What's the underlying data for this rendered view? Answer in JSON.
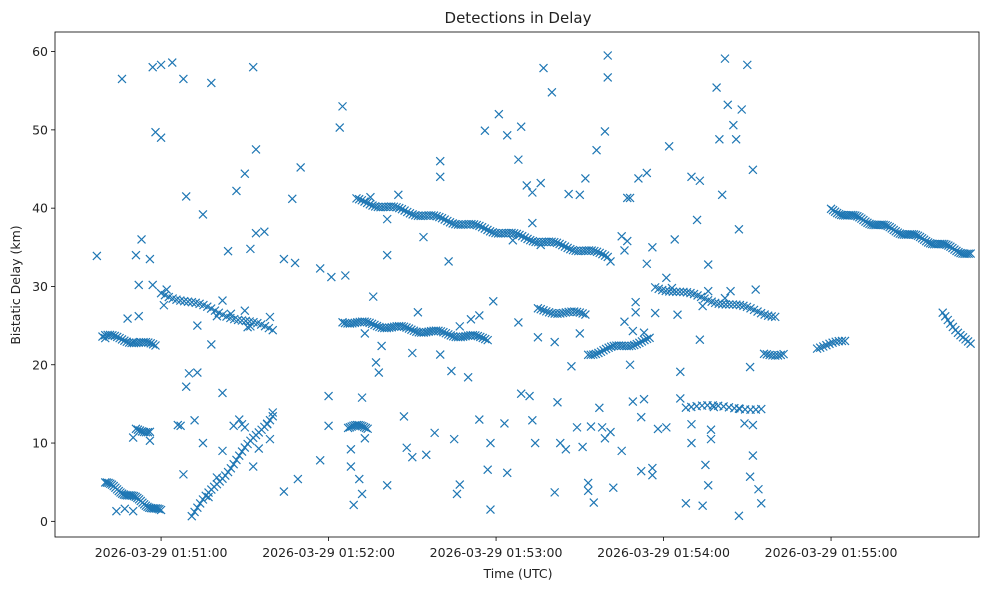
{
  "chart_data": {
    "type": "scatter",
    "title": "Detections in Delay",
    "xlabel": "Time (UTC)",
    "ylabel": "Bistatic Delay (km)",
    "marker": "x",
    "color": "#1f77b4",
    "x_unit": "seconds after 2026-03-29 01:50:00",
    "xlim": [
      22,
      353
    ],
    "ylim": [
      -2,
      62.5
    ],
    "x_ticks": [
      {
        "value": 60,
        "label": "2026-03-29 01:51:00"
      },
      {
        "value": 120,
        "label": "2026-03-29 01:52:00"
      },
      {
        "value": 180,
        "label": "2026-03-29 01:53:00"
      },
      {
        "value": 240,
        "label": "2026-03-29 01:54:00"
      },
      {
        "value": 300,
        "label": "2026-03-29 01:55:00"
      }
    ],
    "y_ticks": [
      {
        "value": 0,
        "label": "0"
      },
      {
        "value": 10,
        "label": "10"
      },
      {
        "value": 20,
        "label": "20"
      },
      {
        "value": 30,
        "label": "30"
      },
      {
        "value": 40,
        "label": "40"
      },
      {
        "value": 50,
        "label": "50"
      },
      {
        "value": 60,
        "label": "60"
      }
    ],
    "bands": [
      {
        "name": "track-low-1",
        "x0": 40,
        "y0": 4.9,
        "x1": 60,
        "y1": 1.2,
        "count": 34
      },
      {
        "name": "track-low-2",
        "x0": 71,
        "y0": 0.8,
        "x1": 100,
        "y1": 13.6,
        "count": 30
      },
      {
        "name": "track-mid-1",
        "x0": 40,
        "y0": 23.7,
        "x1": 58,
        "y1": 22.4,
        "count": 22
      },
      {
        "name": "track-mid-2",
        "x0": 60,
        "y0": 29.2,
        "x1": 100,
        "y1": 24.4,
        "count": 30
      },
      {
        "name": "track-mid-3",
        "x0": 125,
        "y0": 25.6,
        "x1": 177,
        "y1": 23.3,
        "count": 60
      },
      {
        "name": "track-mid-4",
        "x0": 195,
        "y0": 27.0,
        "x1": 212,
        "y1": 26.4,
        "count": 18
      },
      {
        "name": "track-mid-5",
        "x0": 213,
        "y0": 21.4,
        "x1": 235,
        "y1": 23.2,
        "count": 25
      },
      {
        "name": "track-mid-6",
        "x0": 295,
        "y0": 22.3,
        "x1": 305,
        "y1": 22.9,
        "count": 10
      },
      {
        "name": "track-mid-7",
        "x0": 340,
        "y0": 26.5,
        "x1": 350,
        "y1": 22.5,
        "count": 12
      },
      {
        "name": "track-high-1",
        "x0": 130,
        "y0": 41.0,
        "x1": 220,
        "y1": 33.9,
        "count": 95
      },
      {
        "name": "track-high-2",
        "x0": 237,
        "y0": 30.0,
        "x1": 280,
        "y1": 26.3,
        "count": 35
      },
      {
        "name": "track-high-3",
        "x0": 300,
        "y0": 39.8,
        "x1": 350,
        "y1": 34.1,
        "count": 70
      },
      {
        "name": "track-low-3",
        "x0": 51,
        "y0": 11.7,
        "x1": 56,
        "y1": 11.6,
        "count": 8
      },
      {
        "name": "track-low-4",
        "x0": 127,
        "y0": 12.1,
        "x1": 134,
        "y1": 12.0,
        "count": 12
      },
      {
        "name": "track-low-5",
        "x0": 248,
        "y0": 14.6,
        "x1": 275,
        "y1": 14.5,
        "count": 15
      },
      {
        "name": "track-low-6",
        "x0": 276,
        "y0": 21.3,
        "x1": 283,
        "y1": 21.5,
        "count": 8
      }
    ],
    "points": [
      [
        39,
        23.6
      ],
      [
        40,
        23.4
      ],
      [
        46,
        56.5
      ],
      [
        47,
        1.6
      ],
      [
        50,
        10.7
      ],
      [
        51,
        34
      ],
      [
        52,
        26.2
      ],
      [
        53,
        36
      ],
      [
        56,
        33.5
      ],
      [
        57,
        30.2
      ],
      [
        57,
        58
      ],
      [
        58,
        49.7
      ],
      [
        60,
        49
      ],
      [
        60,
        58.3
      ],
      [
        64,
        58.6
      ],
      [
        68,
        56.5
      ],
      [
        69,
        41.5
      ],
      [
        69,
        17.2
      ],
      [
        70,
        18.9
      ],
      [
        72,
        12.9
      ],
      [
        73,
        25
      ],
      [
        75,
        39.2
      ],
      [
        75,
        10
      ],
      [
        77,
        3.1
      ],
      [
        78,
        56
      ],
      [
        78,
        22.6
      ],
      [
        80,
        5.6
      ],
      [
        82,
        9
      ],
      [
        82,
        16.4
      ],
      [
        84,
        34.5
      ],
      [
        87,
        42.2
      ],
      [
        88,
        13
      ],
      [
        90,
        12
      ],
      [
        90,
        44.4
      ],
      [
        90,
        26.9
      ],
      [
        92,
        34.8
      ],
      [
        93,
        58
      ],
      [
        94,
        36.8
      ],
      [
        94,
        47.5
      ],
      [
        93,
        7
      ],
      [
        95,
        9.3
      ],
      [
        99,
        26.1
      ],
      [
        99,
        10.5
      ],
      [
        104,
        33.5
      ],
      [
        104,
        3.8
      ],
      [
        107,
        41.2
      ],
      [
        108,
        33
      ],
      [
        109,
        5.4
      ],
      [
        110,
        45.2
      ],
      [
        117,
        32.3
      ],
      [
        117,
        7.8
      ],
      [
        120,
        16
      ],
      [
        120,
        12.2
      ],
      [
        121,
        31.2
      ],
      [
        124,
        50.3
      ],
      [
        125,
        53
      ],
      [
        126,
        31.4
      ],
      [
        128,
        7
      ],
      [
        128,
        9.2
      ],
      [
        129,
        2.1
      ],
      [
        131,
        5.4
      ],
      [
        132,
        15.8
      ],
      [
        132,
        3.5
      ],
      [
        133,
        10.6
      ],
      [
        133,
        24
      ],
      [
        135,
        41.4
      ],
      [
        136,
        28.7
      ],
      [
        137,
        20.3
      ],
      [
        138,
        19
      ],
      [
        139,
        22.4
      ],
      [
        141,
        38.6
      ],
      [
        141,
        34
      ],
      [
        141,
        4.6
      ],
      [
        145,
        41.7
      ],
      [
        147,
        13.4
      ],
      [
        148,
        9.4
      ],
      [
        150,
        8.2
      ],
      [
        150,
        21.5
      ],
      [
        152,
        26.7
      ],
      [
        154,
        36.3
      ],
      [
        155,
        8.5
      ],
      [
        158,
        11.3
      ],
      [
        160,
        44
      ],
      [
        160,
        46
      ],
      [
        160,
        21.3
      ],
      [
        163,
        33.2
      ],
      [
        164,
        19.2
      ],
      [
        165,
        10.5
      ],
      [
        166,
        3.5
      ],
      [
        167,
        4.7
      ],
      [
        167,
        24.9
      ],
      [
        170,
        18.4
      ],
      [
        171,
        25.8
      ],
      [
        174,
        13
      ],
      [
        174,
        26.3
      ],
      [
        176,
        49.9
      ],
      [
        177,
        6.6
      ],
      [
        178,
        10
      ],
      [
        178,
        1.5
      ],
      [
        179,
        28.1
      ],
      [
        181,
        52
      ],
      [
        183,
        12.5
      ],
      [
        184,
        6.2
      ],
      [
        184,
        49.3
      ],
      [
        186,
        35.9
      ],
      [
        188,
        25.4
      ],
      [
        188,
        46.2
      ],
      [
        189,
        50.4
      ],
      [
        189,
        16.3
      ],
      [
        191,
        42.9
      ],
      [
        192,
        16
      ],
      [
        193,
        12.9
      ],
      [
        193,
        38.1
      ],
      [
        193,
        42
      ],
      [
        194,
        10
      ],
      [
        195,
        23.5
      ],
      [
        196,
        43.2
      ],
      [
        196,
        35.3
      ],
      [
        197,
        57.9
      ],
      [
        200,
        54.8
      ],
      [
        201,
        22.9
      ],
      [
        201,
        3.7
      ],
      [
        202,
        15.2
      ],
      [
        203,
        10
      ],
      [
        205,
        9.2
      ],
      [
        206,
        41.8
      ],
      [
        207,
        19.8
      ],
      [
        209,
        12
      ],
      [
        210,
        41.7
      ],
      [
        210,
        24
      ],
      [
        211,
        9.5
      ],
      [
        212,
        43.8
      ],
      [
        213,
        3.9
      ],
      [
        213,
        4.9
      ],
      [
        214,
        12.1
      ],
      [
        215,
        2.4
      ],
      [
        216,
        47.4
      ],
      [
        217,
        14.5
      ],
      [
        218,
        12
      ],
      [
        219,
        10.6
      ],
      [
        219,
        49.8
      ],
      [
        220,
        59.5
      ],
      [
        220,
        56.7
      ],
      [
        221,
        11.4
      ],
      [
        221,
        33.2
      ],
      [
        222,
        4.3
      ],
      [
        225,
        9
      ],
      [
        225,
        36.4
      ],
      [
        226,
        25.5
      ],
      [
        226,
        34.6
      ],
      [
        227,
        41.3
      ],
      [
        227,
        35.8
      ],
      [
        228,
        41.3
      ],
      [
        228,
        20
      ],
      [
        229,
        24.3
      ],
      [
        229,
        15.3
      ],
      [
        230,
        28
      ],
      [
        230,
        26.7
      ],
      [
        231,
        43.8
      ],
      [
        232,
        13.3
      ],
      [
        232,
        6.4
      ],
      [
        233,
        24.1
      ],
      [
        233,
        15.6
      ],
      [
        234,
        44.5
      ],
      [
        234,
        32.9
      ],
      [
        236,
        5.9
      ],
      [
        236,
        6.8
      ],
      [
        236,
        35
      ],
      [
        237,
        26.6
      ],
      [
        238,
        11.8
      ],
      [
        241,
        12
      ],
      [
        241,
        31.1
      ],
      [
        242,
        47.9
      ],
      [
        243,
        29.8
      ],
      [
        244,
        36
      ],
      [
        245,
        26.4
      ],
      [
        246,
        19.1
      ],
      [
        246,
        15.7
      ],
      [
        248,
        2.3
      ],
      [
        250,
        12.4
      ],
      [
        250,
        44
      ],
      [
        250,
        10
      ],
      [
        252,
        38.5
      ],
      [
        253,
        43.5
      ],
      [
        253,
        23.2
      ],
      [
        254,
        27.5
      ],
      [
        254,
        2
      ],
      [
        255,
        7.2
      ],
      [
        256,
        4.6
      ],
      [
        256,
        29.4
      ],
      [
        256,
        32.8
      ],
      [
        257,
        10.5
      ],
      [
        257,
        11.7
      ],
      [
        258,
        14.6
      ],
      [
        259,
        55.4
      ],
      [
        260,
        48.8
      ],
      [
        261,
        41.7
      ],
      [
        262,
        28.5
      ],
      [
        262,
        59.1
      ],
      [
        263,
        53.2
      ],
      [
        264,
        29.4
      ],
      [
        265,
        50.6
      ],
      [
        266,
        48.8
      ],
      [
        267,
        37.3
      ],
      [
        267,
        14.4
      ],
      [
        267,
        0.7
      ],
      [
        268,
        52.6
      ],
      [
        269,
        12.5
      ],
      [
        270,
        58.3
      ],
      [
        271,
        5.7
      ],
      [
        271,
        19.7
      ],
      [
        272,
        8.4
      ],
      [
        272,
        12.3
      ],
      [
        272,
        44.9
      ],
      [
        273,
        29.6
      ],
      [
        274,
        4.1
      ],
      [
        275,
        2.3
      ],
      [
        37,
        33.9
      ],
      [
        48,
        25.9
      ],
      [
        50,
        22.9
      ],
      [
        52,
        30.2
      ],
      [
        44,
        1.3
      ],
      [
        50,
        1.3
      ],
      [
        56,
        10.3
      ],
      [
        61,
        27.6
      ],
      [
        62,
        29.6
      ],
      [
        66,
        12.3
      ],
      [
        67,
        12.2
      ],
      [
        68,
        6
      ],
      [
        73,
        19
      ],
      [
        80,
        26.2
      ],
      [
        82,
        28.2
      ],
      [
        85,
        26.5
      ],
      [
        86,
        12.2
      ],
      [
        89,
        12.4
      ],
      [
        91,
        24.8
      ],
      [
        92,
        24.9
      ],
      [
        97,
        37
      ],
      [
        98,
        12.4
      ],
      [
        100,
        13.9
      ]
    ]
  }
}
